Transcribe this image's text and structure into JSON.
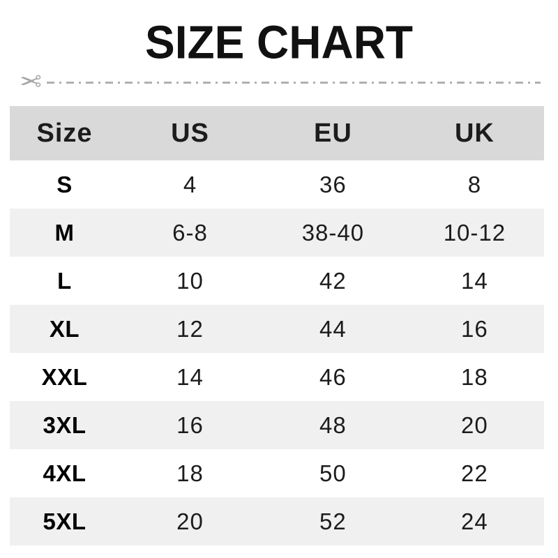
{
  "icons": {
    "scissors": "✂"
  },
  "colors": {
    "title_text": "#111111",
    "header_bg": "#d9d9d9",
    "row_alt_bg": "#f0f0f0",
    "row_bg": "#ffffff",
    "cell_text": "#1c1c1c",
    "cut_line": "#b0b0b0",
    "scissors": "#a6a6a6"
  },
  "chart_data": {
    "type": "table",
    "title": "SIZE CHART",
    "columns": [
      "Size",
      "US",
      "EU",
      "UK"
    ],
    "rows": [
      [
        "S",
        "4",
        "36",
        "8"
      ],
      [
        "M",
        "6-8",
        "38-40",
        "10-12"
      ],
      [
        "L",
        "10",
        "42",
        "14"
      ],
      [
        "XL",
        "12",
        "44",
        "16"
      ],
      [
        "XXL",
        "14",
        "46",
        "18"
      ],
      [
        "3XL",
        "16",
        "48",
        "20"
      ],
      [
        "4XL",
        "18",
        "50",
        "22"
      ],
      [
        "5XL",
        "20",
        "52",
        "24"
      ]
    ]
  }
}
